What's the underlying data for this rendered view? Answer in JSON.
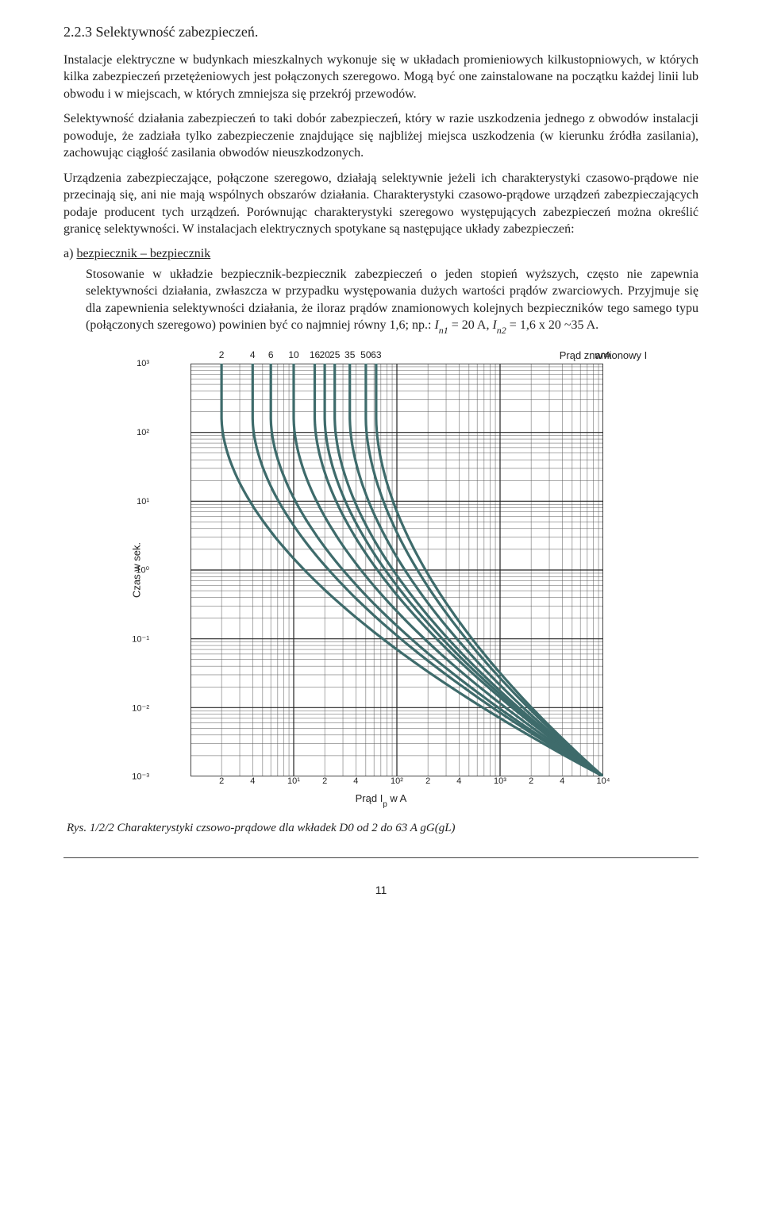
{
  "section_number": "2.2.3",
  "section_title": "Selektywność zabezpieczeń.",
  "para1": "Instalacje elektryczne w budynkach mieszkalnych wykonuje się w układach promieniowych kilkustopniowych, w których kilka zabezpieczeń przetężeniowych jest połączonych szeregowo. Mogą być one zainstalowane na początku każdej linii lub obwodu i w miejscach, w których zmniejsza się przekrój przewodów.",
  "para2": "Selektywność działania zabezpieczeń to taki dobór zabezpieczeń, który w razie uszkodzenia jednego z obwodów instalacji powoduje, że zadziała tylko zabezpieczenie znajdujące się najbliżej miejsca uszkodzenia (w kierunku źródła zasilania), zachowując ciągłość zasilania obwodów nieuszkodzonych.",
  "para3": "Urządzenia zabezpieczające, połączone szeregowo, działają selektywnie jeżeli ich charakterystyki czasowo-prądowe nie przecinają się, ani nie mają wspólnych obszarów działania. Charakterystyki czasowo-prądowe urządzeń zabezpieczających podaje producent tych urządzeń. Porównując charakterystyki szeregowo występujących zabezpieczeń można określić granicę selektywności. W instalacjach elektrycznych spotykane są następujące układy zabezpieczeń:",
  "list_a_label": "a)",
  "list_a_head": "bezpiecznik – bezpiecznik",
  "list_a_body_1": "Stosowanie w układzie bezpiecznik-bezpiecznik zabezpieczeń o jeden stopień wyższych, często nie zapewnia selektywności działania, zwłaszcza w przypadku występowania dużych wartości prądów zwarciowych. Przyjmuje się dla zapewnienia selektywności działania, że iloraz prądów znamionowych kolejnych bezpieczników tego samego typu (połączonych szeregowo) powinien być co najmniej równy 1,6; np.: ",
  "list_a_eq1_pre": "I",
  "list_a_eq1_sub": "n1",
  "list_a_eq1_post": " = 20 A,",
  "list_a_eq2_pre": "I",
  "list_a_eq2_sub": "n2",
  "list_a_eq2_post": " = 1,6 x 20 ~35 A.",
  "chart": {
    "top_title_pre": "Prąd znamionowy I",
    "top_title_sub": "n",
    "top_title_post": " w A",
    "top_ticks": [
      "2",
      "4",
      "6",
      "10",
      "16",
      "20",
      "25",
      "35",
      "50",
      "63"
    ],
    "ylabel": "Czas w sek.",
    "yticks": [
      "10³",
      "10²",
      "10¹",
      "10⁰",
      "10⁻¹",
      "10⁻²",
      "10⁻³"
    ],
    "xticks": [
      "2",
      "4",
      "10¹",
      "2",
      "4",
      "10²",
      "2",
      "4",
      "10³",
      "2",
      "4",
      "10⁴"
    ],
    "xlabel_pre": "Prąd I",
    "xlabel_sub": "p",
    "xlabel_post": " w A",
    "plot": {
      "xmin_log": 0.0,
      "xmax_log": 4.0,
      "ymin_log": -3.0,
      "ymax_log": 3.0,
      "curve_color": "#3e6b6b",
      "curve_width": 3.2,
      "grid_major_color": "#222222",
      "grid_major_width": 1.2,
      "grid_minor_color": "#555555",
      "grid_minor_width": 0.5,
      "background": "#ffffff",
      "curves_x0": [
        2,
        4,
        6,
        10,
        16,
        20,
        25,
        35,
        50,
        63
      ],
      "shape_k": 2.5,
      "y_top": 3.0,
      "y_bot": -3.0
    }
  },
  "caption": "Rys. 1/2/2 Charakterystyki czsowo-prądowe dla wkładek D0 od 2 do 63 A gG(gL)",
  "pagenum": "11"
}
